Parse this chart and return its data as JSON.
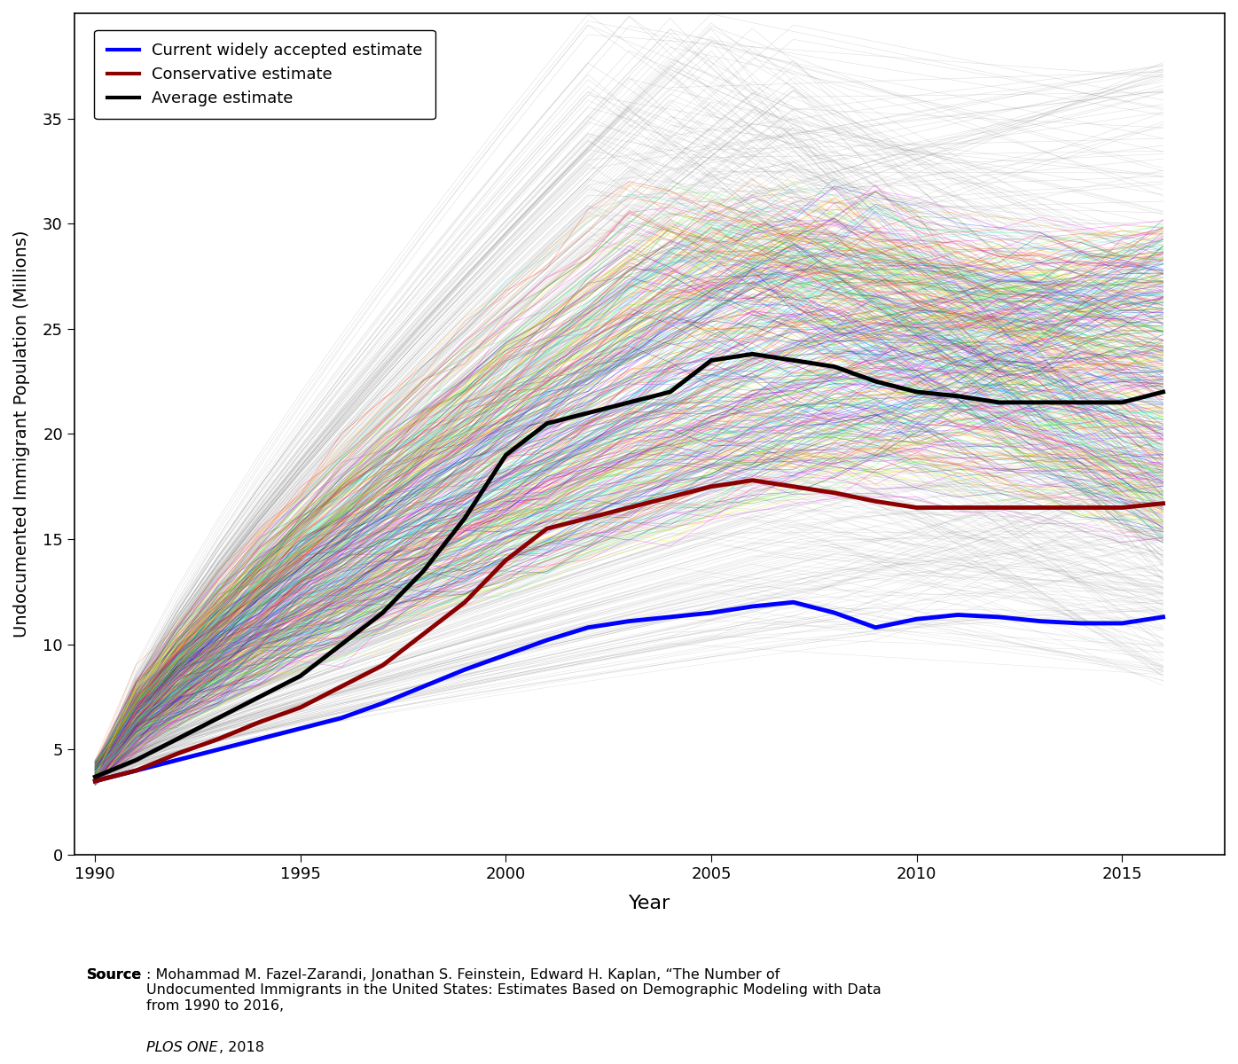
{
  "years": [
    1990,
    1991,
    1992,
    1993,
    1994,
    1995,
    1996,
    1997,
    1998,
    1999,
    2000,
    2001,
    2002,
    2003,
    2004,
    2005,
    2006,
    2007,
    2008,
    2009,
    2010,
    2011,
    2012,
    2013,
    2014,
    2015,
    2016
  ],
  "blue_line": [
    3.5,
    4.0,
    4.5,
    5.0,
    5.5,
    6.0,
    6.5,
    7.2,
    8.0,
    8.8,
    9.5,
    10.2,
    10.8,
    11.1,
    11.3,
    11.5,
    11.8,
    12.0,
    11.5,
    10.8,
    11.2,
    11.4,
    11.3,
    11.1,
    11.0,
    11.0,
    11.3
  ],
  "red_line": [
    3.5,
    4.0,
    4.8,
    5.5,
    6.3,
    7.0,
    8.0,
    9.0,
    10.5,
    12.0,
    14.0,
    15.5,
    16.0,
    16.5,
    17.0,
    17.5,
    17.8,
    17.5,
    17.2,
    16.8,
    16.5,
    16.5,
    16.5,
    16.5,
    16.5,
    16.5,
    16.7
  ],
  "black_line": [
    3.7,
    4.5,
    5.5,
    6.5,
    7.5,
    8.5,
    10.0,
    11.5,
    13.5,
    16.0,
    19.0,
    20.5,
    21.0,
    21.5,
    22.0,
    23.5,
    23.8,
    23.5,
    23.2,
    22.5,
    22.0,
    21.8,
    21.5,
    21.5,
    21.5,
    21.5,
    22.0
  ],
  "ylabel": "Undocumented Immigrant Population (Millions)",
  "xlabel": "Year",
  "ylim": [
    0,
    40
  ],
  "xlim": [
    1989.5,
    2017.5
  ],
  "yticks": [
    0,
    5,
    10,
    15,
    20,
    25,
    30,
    35
  ],
  "xticks": [
    1990,
    1995,
    2000,
    2005,
    2010,
    2015
  ],
  "legend_labels": [
    "Current widely accepted estimate",
    "Conservative estimate",
    "Average estimate"
  ],
  "legend_colors": [
    "#0000ff",
    "#8b0000",
    "#000000"
  ],
  "source_text_bold": "Source",
  "source_text": ": Mohammad M. Fazel-Zarandi, Jonathan S. Feinstein, Edward H. Kaplan, “The Number of Undocumented Immigrants in the United States: Estimates Based on Demographic Modeling with Data from 1990 to 2016, ",
  "source_italic": "PLOS ONE",
  "source_end": ", 2018",
  "n_sim_lines": 900,
  "fig_bg": "#ffffff"
}
